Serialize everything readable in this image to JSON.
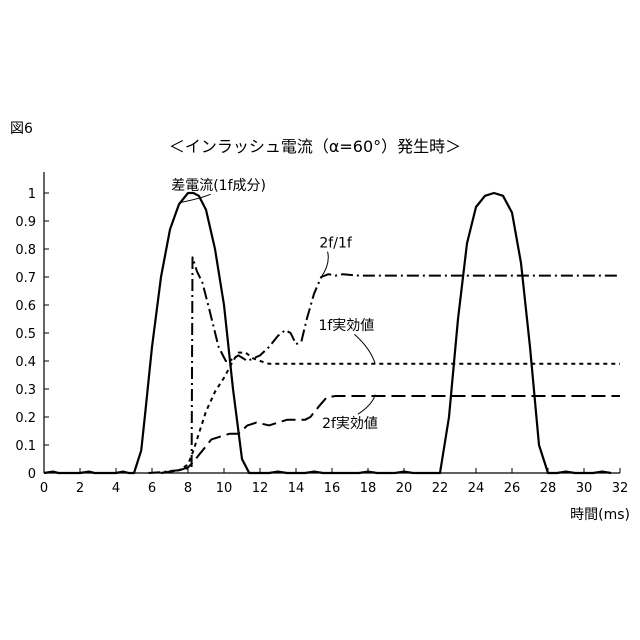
{
  "figure_label": "図6",
  "chart_data": {
    "type": "line",
    "title": "＜インラッシュ電流（α=60°）発生時＞",
    "xlabel": "時間(ms)",
    "ylabel": "",
    "xlim": [
      0,
      32
    ],
    "ylim": [
      0,
      1
    ],
    "x_ticks": [
      "0",
      "2",
      "4",
      "6",
      "8",
      "10",
      "12",
      "14",
      "16",
      "18",
      "20",
      "22",
      "24",
      "26",
      "28",
      "30",
      "32"
    ],
    "y_ticks": [
      "0",
      "0.1",
      "0.2",
      "0.3",
      "0.4",
      "0.5",
      "0.6",
      "0.7",
      "0.8",
      "0.9",
      "1"
    ],
    "grid": false,
    "series": [
      {
        "name": "差電流(1f成分)",
        "style": "solid",
        "x": [
          0.0,
          0.5,
          0.8,
          1.1,
          1.5,
          2.0,
          2.5,
          2.8,
          3.1,
          3.5,
          4.0,
          4.4,
          4.7,
          5.0,
          5.4,
          5.6,
          6.0,
          6.5,
          7.0,
          7.5,
          8.0,
          8.3,
          8.6,
          9.0,
          9.5,
          10.0,
          10.5,
          11.0,
          11.4,
          11.7,
          12.0,
          12.5,
          13.0,
          13.5,
          14.0,
          14.5,
          15.0,
          15.5,
          16.0,
          16.5,
          17.0,
          17.5,
          18.0,
          18.5,
          19.0,
          19.5,
          20.0,
          20.5,
          21.0,
          21.5,
          22.0,
          22.5,
          23.0,
          23.5,
          24.0,
          24.5,
          25.0,
          25.5,
          26.0,
          26.5,
          27.0,
          27.5,
          28.0,
          28.5,
          29.0,
          29.5,
          30.0,
          30.5,
          31.0,
          31.5
        ],
        "y": [
          0.0,
          0.005,
          0.0,
          0.0,
          0.0,
          0.0,
          0.005,
          0.0,
          0.0,
          0.0,
          0.0,
          0.005,
          0.0,
          0.0,
          0.08,
          0.2,
          0.45,
          0.7,
          0.87,
          0.96,
          1.0,
          1.0,
          0.99,
          0.94,
          0.8,
          0.6,
          0.3,
          0.05,
          0.0,
          0.0,
          0.0,
          0.0,
          0.005,
          0.0,
          0.0,
          0.0,
          0.005,
          0.0,
          0.0,
          0.0,
          0.0,
          0.0,
          0.005,
          0.0,
          0.0,
          0.0,
          0.005,
          0.0,
          0.0,
          0.0,
          0.0,
          0.2,
          0.55,
          0.82,
          0.95,
          0.99,
          1.0,
          0.99,
          0.93,
          0.75,
          0.45,
          0.1,
          0.0,
          0.0,
          0.005,
          0.0,
          0.0,
          0.0,
          0.005,
          0.0
        ]
      },
      {
        "name": "2f/1f",
        "style": "dashdot",
        "x": [
          5.8,
          6.5,
          7.0,
          7.5,
          7.9,
          8.2,
          8.25,
          8.5,
          8.8,
          9.2,
          9.7,
          10.1,
          10.3,
          10.8,
          11.3,
          12.0,
          12.5,
          13.0,
          13.4,
          13.7,
          14.0,
          14.3,
          14.6,
          15.0,
          15.4,
          15.8,
          16.2,
          16.6,
          17.5,
          19.0,
          22.0,
          25.0,
          28.0,
          32.0
        ],
        "y": [
          0.0,
          0.003,
          0.007,
          0.01,
          0.015,
          0.02,
          0.77,
          0.72,
          0.68,
          0.58,
          0.45,
          0.4,
          0.4,
          0.42,
          0.4,
          0.42,
          0.45,
          0.49,
          0.51,
          0.5,
          0.46,
          0.47,
          0.55,
          0.64,
          0.7,
          0.71,
          0.705,
          0.71,
          0.705,
          0.705,
          0.705,
          0.705,
          0.705,
          0.705
        ]
      },
      {
        "name": "1f実効値",
        "style": "shortdash",
        "x": [
          6.5,
          7.0,
          7.5,
          8.0,
          8.3,
          8.6,
          9.0,
          9.5,
          10.0,
          10.5,
          10.8,
          11.2,
          11.6,
          12.0,
          12.5,
          13.0,
          14.0,
          15.0,
          16.0,
          18.0,
          20.0,
          22.0,
          25.0,
          28.0,
          30.0,
          32.0
        ],
        "y": [
          0.0,
          0.005,
          0.01,
          0.03,
          0.08,
          0.14,
          0.22,
          0.29,
          0.34,
          0.4,
          0.43,
          0.43,
          0.41,
          0.4,
          0.39,
          0.39,
          0.39,
          0.39,
          0.39,
          0.39,
          0.39,
          0.39,
          0.39,
          0.39,
          0.39,
          0.39
        ]
      },
      {
        "name": "2f実効値",
        "style": "longdash",
        "x": [
          6.5,
          7.5,
          8.0,
          8.3,
          8.8,
          9.3,
          9.8,
          10.3,
          10.8,
          11.3,
          11.8,
          12.5,
          13.0,
          13.5,
          14.0,
          14.5,
          14.8,
          15.3,
          15.7,
          16.2,
          17.0,
          18.0,
          20.0,
          22.0,
          25.0,
          28.0,
          30.0,
          32.0
        ],
        "y": [
          0.0,
          0.01,
          0.02,
          0.04,
          0.08,
          0.12,
          0.13,
          0.14,
          0.14,
          0.17,
          0.18,
          0.17,
          0.18,
          0.19,
          0.19,
          0.19,
          0.2,
          0.24,
          0.27,
          0.275,
          0.275,
          0.275,
          0.275,
          0.275,
          0.275,
          0.275,
          0.275,
          0.275
        ]
      }
    ],
    "annotations": [
      {
        "text": "差電流(1f成分)",
        "target_series": 0,
        "at": [
          9.7,
          1.01
        ],
        "anchor": [
          7.5,
          0.965
        ]
      },
      {
        "text": "2f/1f",
        "target_series": 1,
        "at": [
          16.2,
          0.805
        ],
        "anchor": [
          15.4,
          0.7
        ]
      },
      {
        "text": "1f実効値",
        "target_series": 2,
        "at": [
          16.8,
          0.51
        ],
        "anchor": [
          18.4,
          0.39
        ]
      },
      {
        "text": "2f実効値",
        "target_series": 3,
        "at": [
          17.0,
          0.16
        ],
        "anchor": [
          18.4,
          0.28
        ]
      }
    ]
  }
}
